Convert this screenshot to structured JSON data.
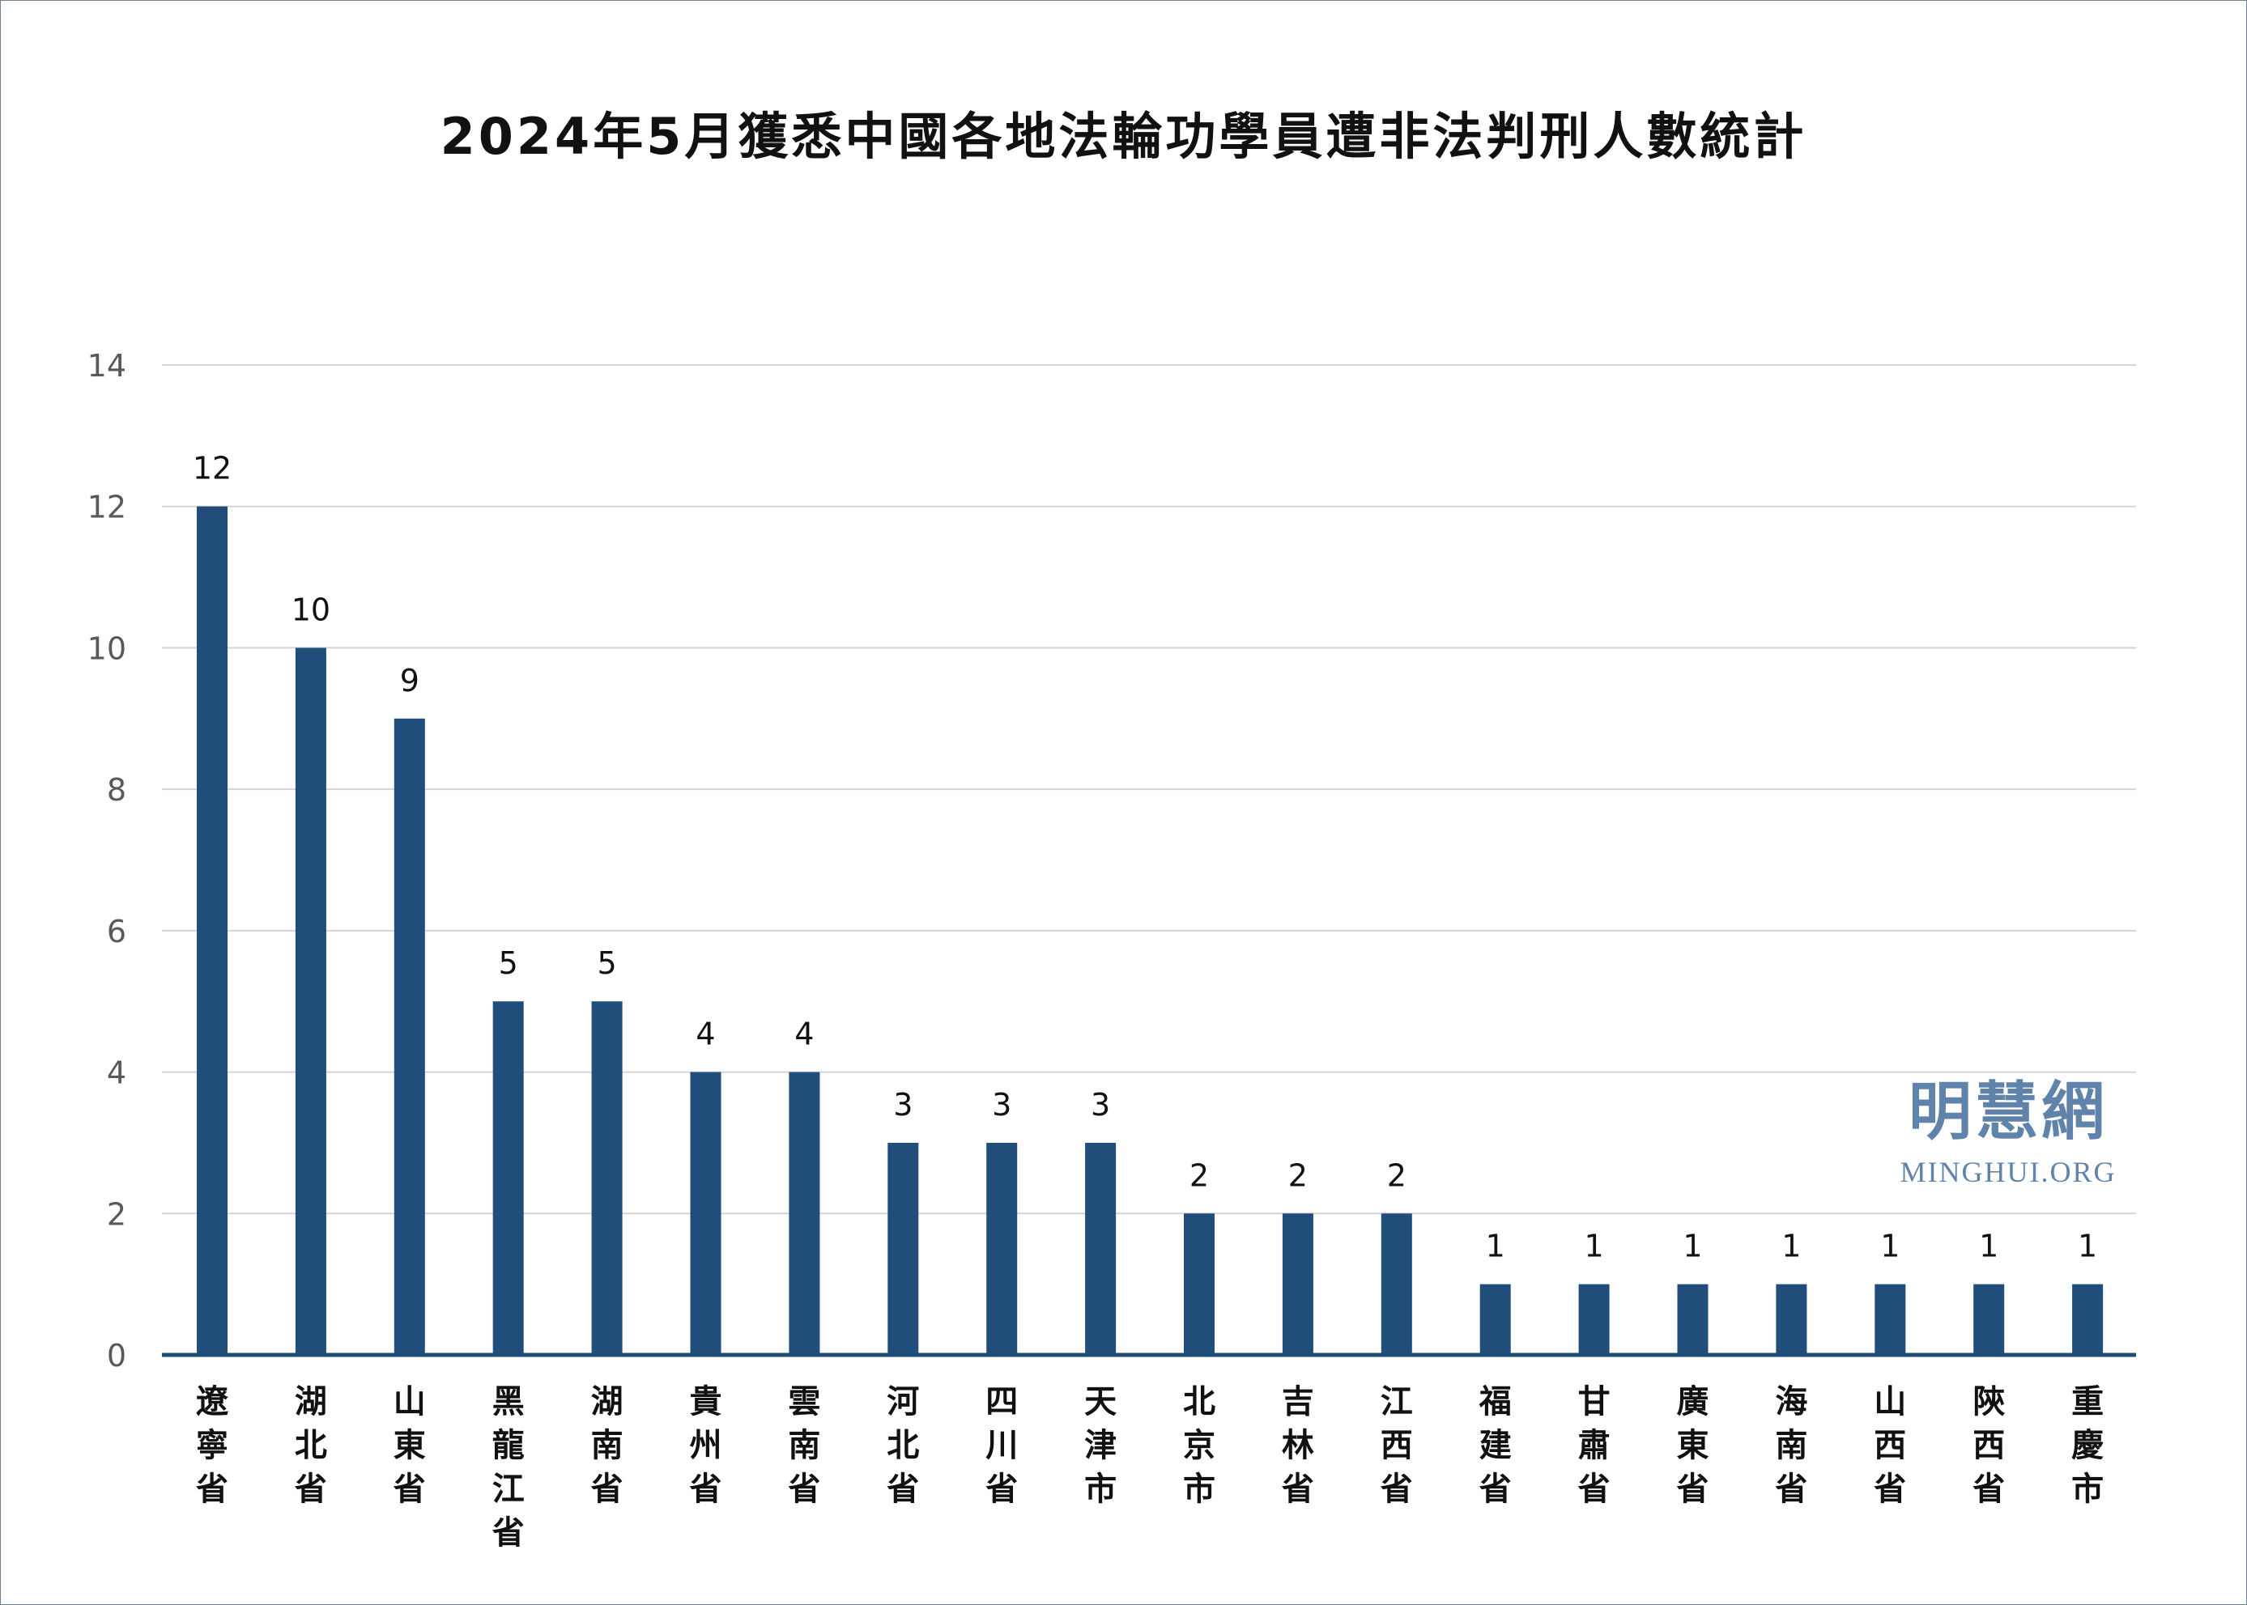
{
  "chart_data": {
    "type": "bar",
    "title": "2024年5月獲悉中國各地法輪功學員遭非法判刑人數統計",
    "categories": [
      "遼寧省",
      "湖北省",
      "山東省",
      "黑龍江省",
      "湖南省",
      "貴州省",
      "雲南省",
      "河北省",
      "四川省",
      "天津市",
      "北京市",
      "吉林省",
      "江西省",
      "福建省",
      "甘肅省",
      "廣東省",
      "海南省",
      "山西省",
      "陝西省",
      "重慶市"
    ],
    "values": [
      12,
      10,
      9,
      5,
      5,
      4,
      4,
      3,
      3,
      3,
      2,
      2,
      2,
      1,
      1,
      1,
      1,
      1,
      1,
      1
    ],
    "y_ticks": [
      "0",
      "2",
      "4",
      "6",
      "8",
      "10",
      "12",
      "14"
    ],
    "ylim": [
      0,
      14
    ],
    "xlabel": "",
    "ylabel": "",
    "grid": true,
    "data_labels": true,
    "bar_color": "#204d79",
    "grid_color": "#d4d4d4"
  },
  "watermark": {
    "cn": "明慧網",
    "en": "MINGHUI.ORG",
    "color": "#5f83aa"
  }
}
